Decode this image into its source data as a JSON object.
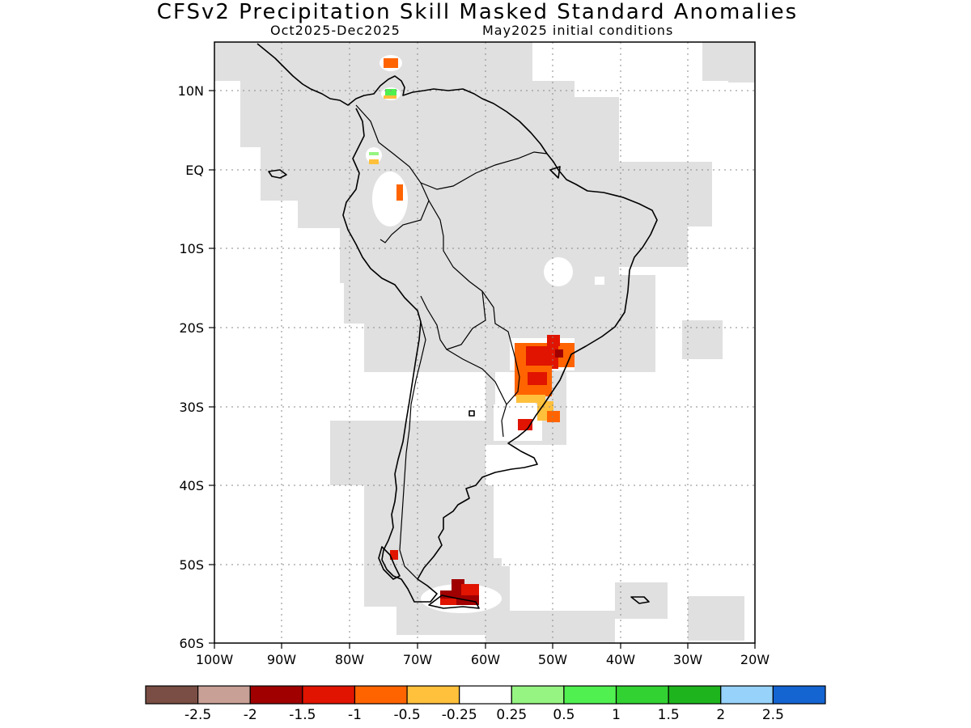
{
  "header": {
    "title": "CFSv2 Precipitation Skill Masked Standard Anomalies",
    "period": "Oct2025-Dec2025",
    "init": "May2025 initial conditions"
  },
  "map": {
    "lon_labels": [
      "100W",
      "90W",
      "80W",
      "70W",
      "60W",
      "50W",
      "40W",
      "30W",
      "20W"
    ],
    "lat_labels": [
      "10N",
      "EQ",
      "10S",
      "20S",
      "30S",
      "40S",
      "50S",
      "60S"
    ],
    "colors": {
      "mask": "#e0e0e0",
      "dry_extreme": "#a00000",
      "dry_strong": "#e01400",
      "dry_moderate": "#ff6400",
      "dry_weak": "#ffc03c",
      "wet_weak": "#96f582",
      "wet_moderate": "#50f050"
    }
  },
  "colorbar": {
    "colors": [
      "#7a4e44",
      "#c8a096",
      "#a00000",
      "#e01400",
      "#ff6400",
      "#ffc03c",
      "#ffffff",
      "#96f582",
      "#50f050",
      "#32d232",
      "#1eb41e",
      "#96d2fa",
      "#1464d2"
    ],
    "labels": [
      "-2.5",
      "-2",
      "-1.5",
      "-1",
      "-0.5",
      "-0.25",
      "0.25",
      "0.5",
      "1",
      "1.5",
      "2",
      "2.5"
    ]
  }
}
